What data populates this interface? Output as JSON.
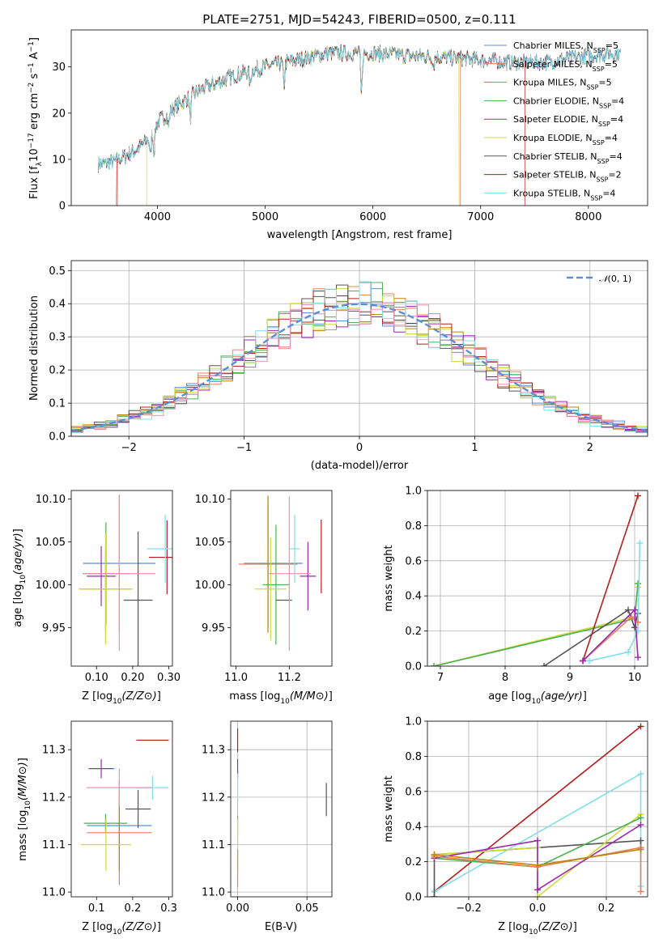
{
  "colors": {
    "Chabrier MILES": "#5b8fd4",
    "Salpeter MILES": "#e8805a",
    "Kroupa MILES": "#b8860b",
    "Chabrier ELODIE": "#4caf50",
    "Salpeter ELODIE": "#9c27b0",
    "Kroupa ELODIE": "#cddc39",
    "Chabrier STELIB": "#555555",
    "Salpeter STELIB": "#b71c1c",
    "Kroupa STELIB": "#80deea",
    "extra": "#ec8fb2",
    "normal": "#5b8fd4"
  },
  "chart_data": [
    {
      "type": "line",
      "title": "PLATE=2751, MJD=54243, FIBERID=0500, z=0.111",
      "xlabel": "wavelength [Angstrom, rest frame]",
      "ylabel_parts": {
        "pre": "Flux [f",
        "sub": "λ",
        "mid": "10",
        "sup1": "−17",
        "post1": " erg cm",
        "sup2": "−2",
        "post2": " s",
        "sup3": "−1",
        "post3": " A",
        "sup4": "−1",
        "end": "]"
      },
      "xlim": [
        3200,
        8550
      ],
      "ylim": [
        0,
        38
      ],
      "xticks": [
        4000,
        5000,
        6000,
        7000,
        8000
      ],
      "yticks": [
        0,
        10,
        20,
        30
      ],
      "legend_position": "top-right",
      "series": [
        {
          "model": "Chabrier MILES",
          "nssp": "5"
        },
        {
          "model": "Salpeter MILES",
          "nssp": "5"
        },
        {
          "model": "Kroupa MILES",
          "nssp": "5"
        },
        {
          "model": "Chabrier ELODIE",
          "nssp": "4"
        },
        {
          "model": "Salpeter ELODIE",
          "nssp": "4"
        },
        {
          "model": "Kroupa ELODIE",
          "nssp": "4"
        },
        {
          "model": "Chabrier STELIB",
          "nssp": "4"
        },
        {
          "model": "Salpeter STELIB",
          "nssp": "2"
        },
        {
          "model": "Kroupa STELIB",
          "nssp": "4"
        }
      ],
      "continuum": {
        "x": [
          3450,
          3600,
          3800,
          3900,
          4000,
          4200,
          4400,
          4700,
          5000,
          5300,
          5600,
          6000,
          6300,
          6700,
          7000,
          7300,
          7600,
          8000,
          8300
        ],
        "y": [
          9,
          9.5,
          12,
          14,
          18,
          22,
          25,
          28,
          30,
          31.5,
          33,
          33,
          32.5,
          32,
          31.5,
          31,
          31,
          32.5,
          33
        ]
      },
      "absorption_lines": [
        {
          "x": 3934,
          "depth": 5
        },
        {
          "x": 3969,
          "depth": 5
        },
        {
          "x": 4102,
          "depth": 3
        },
        {
          "x": 4305,
          "depth": 5
        },
        {
          "x": 4861,
          "depth": 3
        },
        {
          "x": 5175,
          "depth": 5
        },
        {
          "x": 5893,
          "depth": 9
        },
        {
          "x": 6563,
          "depth": 2
        }
      ],
      "spectrum_starts": {
        "Salpeter MILES": 3630,
        "Kroupa ELODIE": 3900,
        "Salpeter STELIB": 3620
      },
      "spectrum_ends": {
        "Kroupa ELODIE": 6800,
        "Salpeter MILES": 6810,
        "Salpeter STELIB": 7410
      }
    },
    {
      "type": "histogram",
      "xlabel": "(data-model)/error",
      "ylabel": "Normed distribution",
      "xlim": [
        -2.5,
        2.5
      ],
      "ylim": [
        0,
        0.53
      ],
      "xticks": [
        -2,
        -1,
        0,
        1,
        2
      ],
      "yticks": [
        0.0,
        0.1,
        0.2,
        0.3,
        0.4,
        0.5
      ],
      "grid": true,
      "bin_width": 0.1,
      "legend": {
        "label": "𝒩(0,1)",
        "position": "top-right"
      }
    },
    {
      "type": "errorbar",
      "xlabel": "Z [log10(Z/Z⊙)]",
      "ylabel": "age [log10(age/yr)]",
      "xlim": [
        0.03,
        0.31
      ],
      "ylim": [
        9.905,
        10.11
      ],
      "xticks": [
        0.1,
        0.2,
        0.3
      ],
      "yticks": [
        9.95,
        10.0,
        10.05,
        10.1
      ],
      "grid": false,
      "points": [
        {
          "model": "Chabrier MILES",
          "x": 0.163,
          "y": 10.025,
          "xerr": 0.1,
          "yerr": 0.0
        },
        {
          "model": "Salpeter MILES",
          "x": 0.163,
          "y": 10.025,
          "xerr": 0.0,
          "yerr": 0.08
        },
        {
          "model": "Kroupa MILES",
          "x": 0.125,
          "y": 9.995,
          "xerr": 0.07,
          "yerr": 0.05
        },
        {
          "model": "Chabrier ELODIE",
          "x": 0.126,
          "y": 10.013,
          "xerr": 0.065,
          "yerr": 0.06
        },
        {
          "model": "Salpeter ELODIE",
          "x": 0.113,
          "y": 10.01,
          "xerr": 0.04,
          "yerr": 0.035
        },
        {
          "model": "Kroupa ELODIE",
          "x": 0.125,
          "y": 9.995,
          "xerr": 0.075,
          "yerr": 0.065
        },
        {
          "model": "Chabrier STELIB",
          "x": 0.215,
          "y": 9.982,
          "xerr": 0.04,
          "yerr": 0.08
        },
        {
          "model": "Salpeter STELIB",
          "x": 0.295,
          "y": 10.032,
          "xerr": 0.05,
          "yerr": 0.043
        },
        {
          "model": "Kroupa STELIB",
          "x": 0.29,
          "y": 10.042,
          "xerr": 0.05,
          "yerr": 0.04
        },
        {
          "model": "extra",
          "x": 0.163,
          "y": 10.013,
          "xerr": 0.1,
          "yerr": 0.09
        }
      ]
    },
    {
      "type": "errorbar",
      "xlabel": "mass [log10(M/M⊙)]",
      "ylabel": "",
      "xlim": [
        10.98,
        11.36
      ],
      "ylim": [
        9.905,
        10.11
      ],
      "xticks": [
        11.0,
        11.2
      ],
      "yticks": [
        9.95,
        10.0,
        10.05,
        10.1
      ],
      "grid": false,
      "points": [
        {
          "model": "Chabrier MILES",
          "x": 11.14,
          "y": 10.025,
          "xerr": 0.11,
          "yerr": 0.0
        },
        {
          "model": "Salpeter MILES",
          "x": 11.12,
          "y": 10.024,
          "xerr": 0.11,
          "yerr": 0.075
        },
        {
          "model": "Kroupa MILES",
          "x": 11.12,
          "y": 10.024,
          "xerr": 0.0,
          "yerr": 0.08
        },
        {
          "model": "Chabrier ELODIE",
          "x": 11.15,
          "y": 10.0,
          "xerr": 0.05,
          "yerr": 0.07
        },
        {
          "model": "Salpeter ELODIE",
          "x": 11.27,
          "y": 10.01,
          "xerr": 0.03,
          "yerr": 0.04
        },
        {
          "model": "Kroupa ELODIE",
          "x": 11.13,
          "y": 9.995,
          "xerr": 0.06,
          "yerr": 0.06
        },
        {
          "model": "Chabrier STELIB",
          "x": 11.18,
          "y": 9.982,
          "xerr": 0.03,
          "yerr": 0.0
        },
        {
          "model": "Salpeter STELIB",
          "x": 11.32,
          "y": 10.033,
          "xerr": 0.0,
          "yerr": 0.043
        },
        {
          "model": "Kroupa STELIB",
          "x": 11.22,
          "y": 10.042,
          "xerr": 0.02,
          "yerr": 0.04
        },
        {
          "model": "extra",
          "x": 11.2,
          "y": 10.013,
          "xerr": 0.08,
          "yerr": 0.09
        }
      ]
    },
    {
      "type": "line",
      "xlabel": "age [log10(age/yr)]",
      "ylabel": "mass weight",
      "xlim": [
        6.8,
        10.2
      ],
      "ylim": [
        0,
        1.0
      ],
      "xticks": [
        7,
        8,
        9,
        10
      ],
      "yticks": [
        0.0,
        0.2,
        0.4,
        0.6,
        0.8,
        1.0
      ],
      "grid": true,
      "series": [
        {
          "model": "Kroupa ELODIE",
          "x": [
            6.9,
            10.0,
            10.05
          ],
          "y": [
            0.0,
            0.28,
            0.45
          ]
        },
        {
          "model": "Chabrier ELODIE",
          "x": [
            6.9,
            10.0,
            10.05
          ],
          "y": [
            0.0,
            0.27,
            0.47
          ]
        },
        {
          "model": "Chabrier STELIB",
          "x": [
            8.6,
            9.9,
            10.0,
            10.05
          ],
          "y": [
            0.0,
            0.32,
            0.22,
            0.3
          ]
        },
        {
          "model": "Salpeter STELIB",
          "x": [
            9.2,
            10.05
          ],
          "y": [
            0.03,
            0.97
          ]
        },
        {
          "model": "Kroupa STELIB",
          "x": [
            9.3,
            9.9,
            10.05,
            10.08
          ],
          "y": [
            0.03,
            0.08,
            0.2,
            0.7
          ]
        },
        {
          "model": "Salpeter MILES",
          "x": [
            9.2,
            9.95,
            10.05
          ],
          "y": [
            0.03,
            0.28,
            0.25
          ]
        },
        {
          "model": "Salpeter ELODIE",
          "x": [
            9.2,
            10.0,
            10.05
          ],
          "y": [
            0.03,
            0.32,
            0.05
          ]
        }
      ]
    },
    {
      "type": "errorbar",
      "xlabel": "Z [log10(Z/Z⊙)]",
      "ylabel": "mass [log10(M/M⊙)]",
      "xlim": [
        0.03,
        0.31
      ],
      "ylim": [
        10.99,
        11.36
      ],
      "xticks": [
        0.1,
        0.2,
        0.3
      ],
      "yticks": [
        11.0,
        11.1,
        11.2,
        11.3
      ],
      "grid": false,
      "points": [
        {
          "model": "Chabrier MILES",
          "x": 0.163,
          "y": 11.14,
          "xerr": 0.09,
          "yerr": 0.0
        },
        {
          "model": "Salpeter MILES",
          "x": 0.163,
          "y": 11.125,
          "xerr": 0.09,
          "yerr": 0.11
        },
        {
          "model": "Kroupa MILES",
          "x": 0.163,
          "y": 11.125,
          "xerr": 0.0,
          "yerr": 0.08
        },
        {
          "model": "Chabrier ELODIE",
          "x": 0.125,
          "y": 11.145,
          "xerr": 0.06,
          "yerr": 0.02
        },
        {
          "model": "Salpeter ELODIE",
          "x": 0.113,
          "y": 11.26,
          "xerr": 0.035,
          "yerr": 0.02
        },
        {
          "model": "Kroupa ELODIE",
          "x": 0.126,
          "y": 11.1,
          "xerr": 0.07,
          "yerr": 0.055
        },
        {
          "model": "Chabrier STELIB",
          "x": 0.215,
          "y": 11.175,
          "xerr": 0.035,
          "yerr": 0.04
        },
        {
          "model": "Salpeter STELIB",
          "x": 0.255,
          "y": 11.32,
          "xerr": 0.045,
          "yerr": 0.0
        },
        {
          "model": "Kroupa STELIB",
          "x": 0.255,
          "y": 11.22,
          "xerr": 0.045,
          "yerr": 0.025
        },
        {
          "model": "extra",
          "x": 0.163,
          "y": 11.22,
          "xerr": 0.09,
          "yerr": 0.04
        }
      ]
    },
    {
      "type": "errorbar",
      "xlabel": "E(B-V)",
      "ylabel": "",
      "xlim": [
        -0.005,
        0.068
      ],
      "ylim": [
        10.99,
        11.36
      ],
      "xticks": [
        0.0,
        0.05
      ],
      "yticks": [
        11.0,
        11.1,
        11.2,
        11.3
      ],
      "grid": true,
      "points": [
        {
          "model": "Salpeter STELIB",
          "x": 0.0,
          "y": 11.32,
          "xerr": 0.0,
          "yerr": 0.025
        },
        {
          "model": "Salpeter ELODIE",
          "x": 0.0,
          "y": 11.26,
          "xerr": 0.0,
          "yerr": 0.02
        },
        {
          "model": "Kroupa STELIB",
          "x": 0.0,
          "y": 11.22,
          "xerr": 0.0,
          "yerr": 0.03
        },
        {
          "model": "Chabrier ELODIE",
          "x": 0.0,
          "y": 11.14,
          "xerr": 0.0,
          "yerr": 0.02
        },
        {
          "model": "Kroupa ELODIE",
          "x": 0.0,
          "y": 11.1,
          "xerr": 0.0,
          "yerr": 0.055
        },
        {
          "model": "Salpeter MILES",
          "x": 0.0,
          "y": 11.05,
          "xerr": 0.0,
          "yerr": 0.04
        },
        {
          "model": "Chabrier STELIB",
          "x": 0.064,
          "y": 11.195,
          "xerr": 0.0,
          "yerr": 0.035
        }
      ]
    },
    {
      "type": "line",
      "xlabel": "Z [log10(Z/Z⊙)]",
      "ylabel": "mass weight",
      "xlim": [
        -0.32,
        0.32
      ],
      "ylim": [
        0,
        1.0
      ],
      "xticks": [
        -0.2,
        0.0,
        0.2
      ],
      "yticks": [
        0.0,
        0.2,
        0.4,
        0.6,
        0.8,
        1.0
      ],
      "grid": true,
      "series": [
        {
          "model": "Salpeter STELIB",
          "x": [
            -0.3,
            0.3
          ],
          "y": [
            0.03,
            0.97
          ]
        },
        {
          "model": "Kroupa STELIB",
          "x": [
            -0.3,
            0.3,
            0.3
          ],
          "y": [
            0.03,
            0.7,
            0.06
          ]
        },
        {
          "model": "Chabrier STELIB",
          "x": [
            -0.3,
            -0.3,
            0.3,
            0.3
          ],
          "y": [
            0.0,
            0.24,
            0.32,
            0.27
          ]
        },
        {
          "model": "Kroupa ELODIE",
          "x": [
            -0.3,
            0.0,
            0.0,
            0.3
          ],
          "y": [
            0.24,
            0.28,
            0.0,
            0.47
          ]
        },
        {
          "model": "Chabrier ELODIE",
          "x": [
            -0.3,
            0.0,
            0.3
          ],
          "y": [
            0.22,
            0.17,
            0.45
          ]
        },
        {
          "model": "Salpeter ELODIE",
          "x": [
            -0.3,
            0.0,
            0.0,
            0.3
          ],
          "y": [
            0.22,
            0.32,
            0.04,
            0.41
          ]
        },
        {
          "model": "Salpeter MILES",
          "x": [
            -0.3,
            0.0,
            0.3,
            0.3
          ],
          "y": [
            0.23,
            0.17,
            0.28,
            0.03
          ]
        },
        {
          "model": "Kroupa MILES",
          "x": [
            -0.3,
            0.0,
            0.3
          ],
          "y": [
            0.24,
            0.18,
            0.27
          ]
        }
      ]
    }
  ]
}
